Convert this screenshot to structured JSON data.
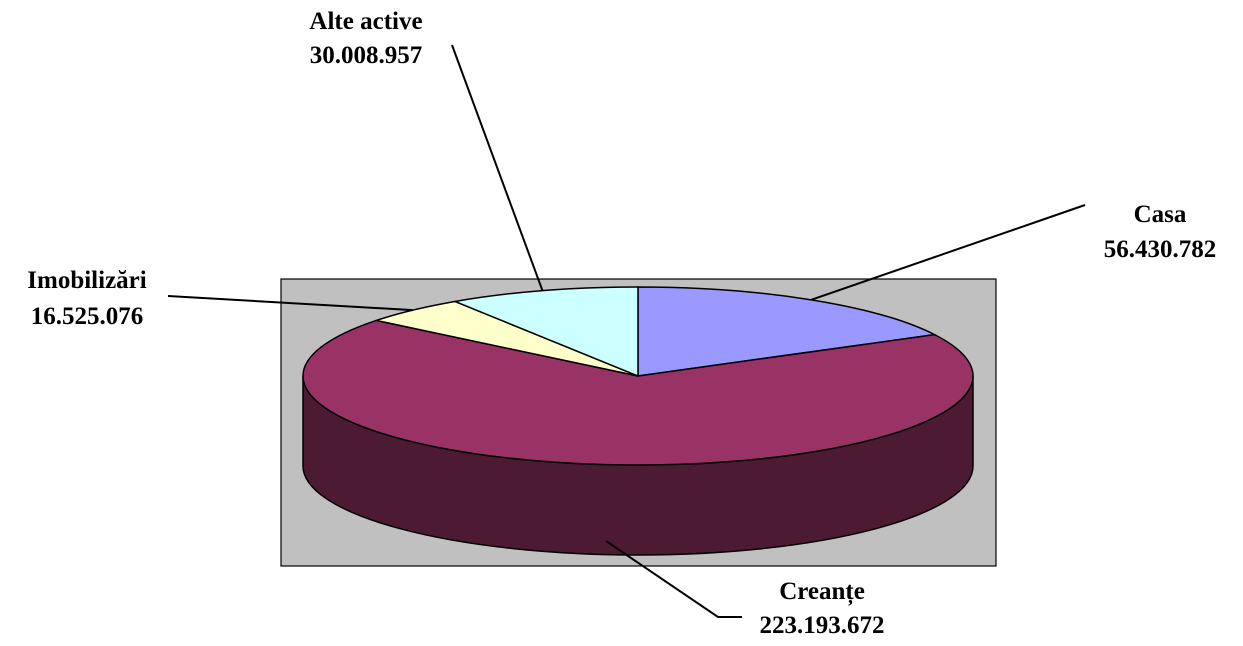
{
  "chart_data": {
    "type": "pie",
    "title": "",
    "series": [
      {
        "name": "Casa",
        "value": 56430782,
        "value_label": "56.430.782",
        "color": "#9999ff"
      },
      {
        "name": "Creanțe",
        "value": 223193672,
        "value_label": "223.193.672",
        "color": "#993366"
      },
      {
        "name": "Imobilizări",
        "value": 16525076,
        "value_label": "16.525.076",
        "color": "#ffffcc"
      },
      {
        "name": "Alte active",
        "value": 30008957,
        "value_label": "30.008.957",
        "color": "#ccffff"
      }
    ],
    "legend": "none",
    "three_d": true,
    "plot_area_color": "#c0c0c0"
  }
}
